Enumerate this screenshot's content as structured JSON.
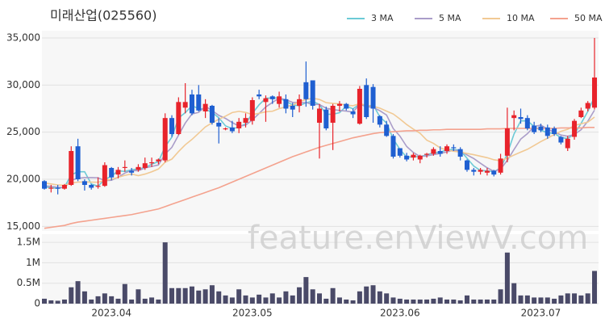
{
  "chart_data": [
    {
      "type": "candlestick",
      "title": "미래산업(025560)",
      "watermark": "feature.enViewV.com",
      "categories": [
        null,
        null,
        null,
        null,
        null,
        null,
        null,
        null,
        null,
        null,
        "2023.04",
        null,
        null,
        null,
        null,
        null,
        null,
        null,
        null,
        null,
        null,
        null,
        null,
        null,
        null,
        null,
        null,
        null,
        null,
        null,
        null,
        "2023.05",
        null,
        null,
        null,
        null,
        null,
        null,
        null,
        null,
        null,
        null,
        null,
        null,
        null,
        null,
        null,
        null,
        null,
        null,
        null,
        null,
        null,
        "2023.06",
        null,
        null,
        null,
        null,
        null,
        null,
        null,
        null,
        null,
        null,
        null,
        null,
        null,
        null,
        null,
        null,
        null,
        null,
        null,
        null,
        "2023.07",
        null,
        null,
        null,
        null,
        null,
        null,
        null,
        null
      ],
      "open": [
        19800,
        19000,
        19100,
        19000,
        19400,
        23500,
        19800,
        19400,
        19200,
        19300,
        21200,
        20500,
        21200,
        20900,
        21000,
        21200,
        21700,
        21900,
        22000,
        26500,
        24800,
        27600,
        29000,
        29000,
        27200,
        27800,
        26000,
        25300,
        25500,
        25400,
        26000,
        26200,
        29000,
        28200,
        28800,
        28000,
        28500,
        27800,
        27800,
        30300,
        30500,
        26000,
        27400,
        26000,
        27800,
        28000,
        27200,
        25900,
        30000,
        29800,
        26700,
        25800,
        24600,
        23300,
        22500,
        22300,
        22100,
        22600,
        22700,
        23000,
        23000,
        23400,
        23200,
        22000,
        21000,
        20800,
        20700,
        20900,
        20700,
        22500,
        26500,
        26600,
        26500,
        25700,
        25600,
        25500,
        25400,
        24500,
        23300,
        24500,
        26600,
        27500,
        27600
      ],
      "high": [
        19900,
        19400,
        19400,
        19500,
        23500,
        24300,
        20000,
        19500,
        20200,
        21800,
        21300,
        21300,
        22000,
        21200,
        21600,
        22300,
        22300,
        22200,
        27000,
        26800,
        28700,
        30200,
        29500,
        30000,
        28500,
        27900,
        26500,
        25500,
        26200,
        26500,
        27000,
        28700,
        29500,
        28900,
        28900,
        29300,
        29000,
        28100,
        29000,
        32500,
        30500,
        28000,
        27700,
        28000,
        28300,
        28100,
        27500,
        29900,
        30700,
        30100,
        26800,
        26200,
        24800,
        23200,
        22800,
        22800,
        22600,
        22800,
        23400,
        23500,
        23700,
        23700,
        23400,
        22100,
        21200,
        21200,
        21200,
        21000,
        22700,
        27600,
        27300,
        27500,
        26800,
        26100,
        25900,
        25800,
        25600,
        24600,
        24600,
        26400,
        27600,
        28300,
        35000
      ],
      "low": [
        18900,
        18600,
        18400,
        18900,
        19300,
        19800,
        18800,
        18900,
        19000,
        19200,
        19900,
        20100,
        20800,
        20400,
        20800,
        21000,
        21300,
        21600,
        21800,
        24500,
        24700,
        27000,
        26800,
        27200,
        26500,
        25800,
        23800,
        25200,
        24900,
        24900,
        25500,
        25800,
        28500,
        26100,
        28000,
        27600,
        27000,
        26600,
        27100,
        27700,
        27400,
        22200,
        25200,
        23100,
        27200,
        27300,
        26500,
        25800,
        26400,
        26000,
        25500,
        24500,
        22200,
        22300,
        21900,
        22000,
        21700,
        22300,
        22500,
        22400,
        22700,
        23000,
        22000,
        20800,
        20400,
        20500,
        20400,
        20300,
        20500,
        21800,
        25200,
        25900,
        25200,
        24800,
        25000,
        24300,
        24600,
        23700,
        23000,
        24200,
        26500,
        27200,
        27400
      ],
      "close": [
        19000,
        19100,
        19000,
        19400,
        23000,
        20000,
        19400,
        19100,
        19300,
        21500,
        20200,
        21000,
        21300,
        20700,
        21300,
        21700,
        21800,
        22100,
        26500,
        24800,
        28200,
        28200,
        27000,
        27300,
        28000,
        26000,
        25600,
        25400,
        25100,
        26100,
        26500,
        28400,
        28800,
        28600,
        28500,
        28800,
        27500,
        27400,
        28500,
        28500,
        27800,
        27500,
        25400,
        27800,
        28000,
        27500,
        26900,
        29600,
        26600,
        27500,
        25800,
        24600,
        22400,
        22500,
        22100,
        22600,
        22500,
        22700,
        23200,
        22700,
        23500,
        23300,
        22400,
        21000,
        20800,
        21000,
        20900,
        20500,
        22200,
        25400,
        26800,
        26400,
        25400,
        25000,
        25200,
        24600,
        24800,
        23900,
        24300,
        26200,
        27300,
        28100,
        30800
      ],
      "up_color": "#e8232b",
      "down_color": "#1f5fd1",
      "series": [
        {
          "name": "3 MA",
          "color": "#6ccad6",
          "values": [
            19200,
            19100,
            19030,
            19170,
            20470,
            20800,
            20800,
            19500,
            19270,
            19970,
            20330,
            20900,
            20830,
            21000,
            21100,
            21230,
            21600,
            21870,
            23470,
            24470,
            26500,
            27070,
            27800,
            27500,
            27430,
            27100,
            26530,
            25670,
            25370,
            25530,
            25900,
            27000,
            27900,
            28600,
            28630,
            28630,
            28270,
            27900,
            27800,
            28130,
            28270,
            27930,
            26900,
            26900,
            27070,
            27770,
            27470,
            28000,
            27700,
            27900,
            26630,
            25970,
            24270,
            23170,
            22330,
            22400,
            22400,
            22600,
            22800,
            22870,
            23130,
            23170,
            23070,
            22230,
            21400,
            20930,
            20900,
            20800,
            21200,
            22700,
            24800,
            26200,
            26200,
            25600,
            25200,
            24930,
            24870,
            24430,
            24330,
            24800,
            25930,
            27200,
            28730
          ]
        },
        {
          "name": "5 MA",
          "color": "#aa9dc9",
          "values": [
            19300,
            19250,
            19150,
            19120,
            19900,
            20100,
            20180,
            20180,
            20160,
            19860,
            19900,
            20220,
            20660,
            20940,
            20900,
            21200,
            21360,
            21520,
            22680,
            23380,
            24680,
            25960,
            26940,
            27100,
            27740,
            27300,
            26780,
            26460,
            26020,
            25640,
            25740,
            26300,
            26980,
            27680,
            28160,
            28620,
            28440,
            28160,
            28140,
            28140,
            27940,
            27940,
            27540,
            27400,
            27300,
            27240,
            27120,
            27960,
            27740,
            27620,
            27280,
            26820,
            25380,
            24580,
            23480,
            22840,
            22420,
            22480,
            22620,
            22740,
            22920,
            23080,
            23020,
            22580,
            22200,
            21700,
            21220,
            20840,
            21080,
            22000,
            23160,
            24260,
            24840,
            25600,
            25760,
            25320,
            25000,
            24700,
            24560,
            24760,
            25260,
            26160,
            27340
          ]
        },
        {
          "name": "10 MA",
          "color": "#f1c994",
          "values": [
            19600,
            19500,
            19400,
            19350,
            19600,
            19700,
            19720,
            19700,
            19680,
            19880,
            20000,
            20200,
            20420,
            20560,
            20380,
            20550,
            20790,
            21090,
            21810,
            22140,
            22940,
            23660,
            24230,
            24890,
            25560,
            25990,
            26370,
            26700,
            27080,
            27210,
            27100,
            26860,
            27000,
            27160,
            27220,
            27500,
            27690,
            27890,
            28230,
            28470,
            28600,
            28470,
            28130,
            28050,
            28000,
            27870,
            27810,
            28030,
            27840,
            27740,
            27550,
            27230,
            26930,
            26400,
            25810,
            25320,
            24880,
            24150,
            23810,
            23330,
            23100,
            22970,
            22900,
            22740,
            22610,
            22450,
            22290,
            22070,
            21970,
            22240,
            22570,
            22880,
            23180,
            23580,
            24000,
            24360,
            24750,
            25090,
            25300,
            25700,
            25890,
            26060,
            26600
          ]
        },
        {
          "name": "50 MA",
          "color": "#f4a28e",
          "values": [
            14800,
            14900,
            15000,
            15100,
            15300,
            15450,
            15550,
            15650,
            15750,
            15850,
            15950,
            16050,
            16150,
            16250,
            16400,
            16550,
            16700,
            16850,
            17100,
            17350,
            17600,
            17850,
            18100,
            18350,
            18600,
            18850,
            19100,
            19400,
            19700,
            20000,
            20300,
            20600,
            20900,
            21200,
            21500,
            21800,
            22100,
            22400,
            22650,
            22900,
            23150,
            23400,
            23600,
            23800,
            24000,
            24200,
            24400,
            24550,
            24700,
            24850,
            24950,
            25000,
            25050,
            25100,
            25150,
            25150,
            25200,
            25200,
            25250,
            25250,
            25300,
            25300,
            25300,
            25300,
            25300,
            25300,
            25350,
            25350,
            25350,
            25400,
            25400,
            25400,
            25400,
            25400,
            25400,
            25400,
            25400,
            25450,
            25450,
            25450,
            25450,
            25500,
            25500
          ]
        }
      ],
      "ylim": [
        14600,
        35600
      ],
      "yticks": [
        {
          "value": 15000,
          "label": "15,000"
        },
        {
          "value": 20000,
          "label": "20,000"
        },
        {
          "value": 25000,
          "label": "25,000"
        },
        {
          "value": 30000,
          "label": "30,000"
        },
        {
          "value": 35000,
          "label": "35,000"
        }
      ],
      "grid": true
    },
    {
      "type": "bar",
      "color": "#4a4a68",
      "values": [
        120000,
        80000,
        70000,
        100000,
        400000,
        550000,
        300000,
        100000,
        180000,
        250000,
        180000,
        120000,
        480000,
        100000,
        350000,
        120000,
        150000,
        100000,
        1500000,
        380000,
        380000,
        380000,
        420000,
        320000,
        350000,
        450000,
        300000,
        200000,
        150000,
        350000,
        200000,
        150000,
        220000,
        150000,
        250000,
        150000,
        300000,
        200000,
        400000,
        650000,
        350000,
        250000,
        120000,
        380000,
        150000,
        100000,
        80000,
        300000,
        420000,
        450000,
        300000,
        250000,
        150000,
        120000,
        100000,
        100000,
        100000,
        100000,
        120000,
        150000,
        100000,
        100000,
        80000,
        200000,
        100000,
        100000,
        100000,
        100000,
        350000,
        1250000,
        500000,
        200000,
        200000,
        150000,
        150000,
        150000,
        120000,
        200000,
        250000,
        250000,
        200000,
        250000,
        800000
      ],
      "ylim": [
        0,
        1700000
      ],
      "yticks": [
        0,
        {
          "value": 500000,
          "label": "0.5M"
        },
        {
          "value": 1000000,
          "label": "1M"
        },
        {
          "value": 1500000,
          "label": "1.5M"
        }
      ],
      "grid": true
    }
  ]
}
